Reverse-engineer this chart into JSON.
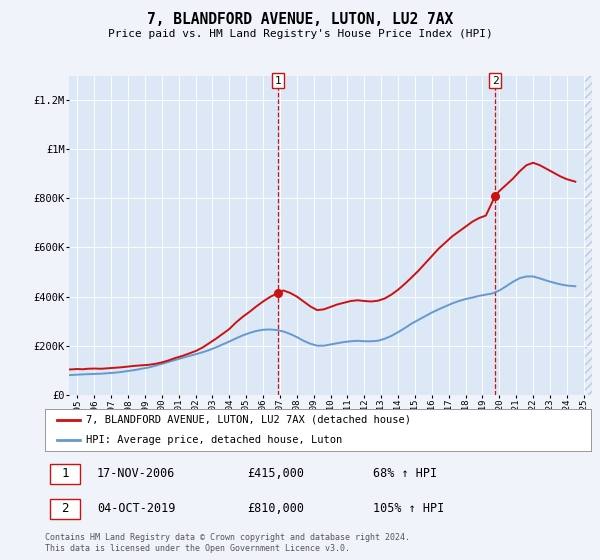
{
  "title": "7, BLANDFORD AVENUE, LUTON, LU2 7AX",
  "subtitle": "Price paid vs. HM Land Registry's House Price Index (HPI)",
  "background_color": "#f0f4fa",
  "plot_bg_color": "#dce8f5",
  "hatch_color": "#c8d8ee",
  "red_line_color": "#cc1111",
  "blue_line_color": "#6699cc",
  "vline_color": "#cc1111",
  "marker1_date_x": 2006.88,
  "marker2_date_x": 2019.75,
  "marker1_y": 415000,
  "marker2_y": 810000,
  "ylim": [
    0,
    1300000
  ],
  "xlim": [
    1994.5,
    2025.5
  ],
  "yticks": [
    0,
    200000,
    400000,
    600000,
    800000,
    1000000,
    1200000
  ],
  "ytick_labels": [
    "£0",
    "£200K",
    "£400K",
    "£600K",
    "£800K",
    "£1M",
    "£1.2M"
  ],
  "xticks": [
    1995,
    1996,
    1997,
    1998,
    1999,
    2000,
    2001,
    2002,
    2003,
    2004,
    2005,
    2006,
    2007,
    2008,
    2009,
    2010,
    2011,
    2012,
    2013,
    2014,
    2015,
    2016,
    2017,
    2018,
    2019,
    2020,
    2021,
    2022,
    2023,
    2024,
    2025
  ],
  "legend_label_red": "7, BLANDFORD AVENUE, LUTON, LU2 7AX (detached house)",
  "legend_label_blue": "HPI: Average price, detached house, Luton",
  "annotation1_date": "17-NOV-2006",
  "annotation1_price": "£415,000",
  "annotation1_hpi": "68% ↑ HPI",
  "annotation2_date": "04-OCT-2019",
  "annotation2_price": "£810,000",
  "annotation2_hpi": "105% ↑ HPI",
  "footer": "Contains HM Land Registry data © Crown copyright and database right 2024.\nThis data is licensed under the Open Government Licence v3.0.",
  "red_x": [
    1994.5,
    1995.0,
    1995.3,
    1995.6,
    1996.0,
    1996.4,
    1996.8,
    1997.2,
    1997.6,
    1998.0,
    1998.4,
    1998.8,
    1999.2,
    1999.6,
    2000.0,
    2000.4,
    2000.8,
    2001.2,
    2001.6,
    2002.0,
    2002.4,
    2002.8,
    2003.2,
    2003.6,
    2004.0,
    2004.4,
    2004.8,
    2005.2,
    2005.6,
    2006.0,
    2006.4,
    2006.88,
    2007.2,
    2007.6,
    2008.0,
    2008.4,
    2008.8,
    2009.2,
    2009.6,
    2010.0,
    2010.4,
    2010.8,
    2011.2,
    2011.6,
    2012.0,
    2012.4,
    2012.8,
    2013.2,
    2013.6,
    2014.0,
    2014.4,
    2014.8,
    2015.2,
    2015.6,
    2016.0,
    2016.4,
    2016.8,
    2017.2,
    2017.6,
    2018.0,
    2018.4,
    2018.8,
    2019.2,
    2019.75,
    2020.0,
    2020.4,
    2020.8,
    2021.2,
    2021.6,
    2022.0,
    2022.4,
    2022.8,
    2023.2,
    2023.6,
    2024.0,
    2024.5
  ],
  "red_y": [
    103000,
    105000,
    104000,
    106000,
    107000,
    106000,
    108000,
    110000,
    112000,
    115000,
    118000,
    120000,
    122000,
    126000,
    132000,
    140000,
    150000,
    158000,
    168000,
    178000,
    192000,
    210000,
    228000,
    248000,
    268000,
    295000,
    318000,
    338000,
    360000,
    380000,
    398000,
    415000,
    425000,
    415000,
    400000,
    380000,
    360000,
    345000,
    348000,
    358000,
    368000,
    375000,
    382000,
    385000,
    382000,
    380000,
    383000,
    392000,
    408000,
    428000,
    452000,
    478000,
    505000,
    535000,
    565000,
    595000,
    620000,
    645000,
    665000,
    685000,
    705000,
    720000,
    730000,
    810000,
    830000,
    855000,
    880000,
    910000,
    935000,
    945000,
    935000,
    920000,
    905000,
    890000,
    878000,
    868000
  ],
  "blue_x": [
    1994.5,
    1995.0,
    1995.3,
    1995.6,
    1996.0,
    1996.4,
    1996.8,
    1997.2,
    1997.6,
    1998.0,
    1998.4,
    1998.8,
    1999.2,
    1999.6,
    2000.0,
    2000.4,
    2000.8,
    2001.2,
    2001.6,
    2002.0,
    2002.4,
    2002.8,
    2003.2,
    2003.6,
    2004.0,
    2004.4,
    2004.8,
    2005.2,
    2005.6,
    2006.0,
    2006.4,
    2006.8,
    2007.2,
    2007.6,
    2008.0,
    2008.4,
    2008.8,
    2009.2,
    2009.6,
    2010.0,
    2010.4,
    2010.8,
    2011.2,
    2011.6,
    2012.0,
    2012.4,
    2012.8,
    2013.2,
    2013.6,
    2014.0,
    2014.4,
    2014.8,
    2015.2,
    2015.6,
    2016.0,
    2016.4,
    2016.8,
    2017.2,
    2017.6,
    2018.0,
    2018.4,
    2018.8,
    2019.2,
    2019.6,
    2020.0,
    2020.4,
    2020.8,
    2021.2,
    2021.6,
    2022.0,
    2022.4,
    2022.8,
    2023.2,
    2023.6,
    2024.0,
    2024.5
  ],
  "blue_y": [
    80000,
    82000,
    83000,
    84000,
    85000,
    86000,
    88000,
    90000,
    93000,
    97000,
    101000,
    106000,
    111000,
    118000,
    126000,
    134000,
    142000,
    150000,
    158000,
    165000,
    173000,
    182000,
    193000,
    205000,
    217000,
    230000,
    242000,
    252000,
    260000,
    265000,
    266000,
    264000,
    258000,
    248000,
    235000,
    220000,
    208000,
    200000,
    200000,
    205000,
    210000,
    215000,
    218000,
    220000,
    218000,
    218000,
    220000,
    228000,
    240000,
    255000,
    272000,
    290000,
    305000,
    320000,
    335000,
    348000,
    360000,
    372000,
    382000,
    390000,
    396000,
    403000,
    408000,
    413000,
    425000,
    442000,
    460000,
    475000,
    482000,
    482000,
    474000,
    465000,
    457000,
    450000,
    445000,
    442000
  ]
}
